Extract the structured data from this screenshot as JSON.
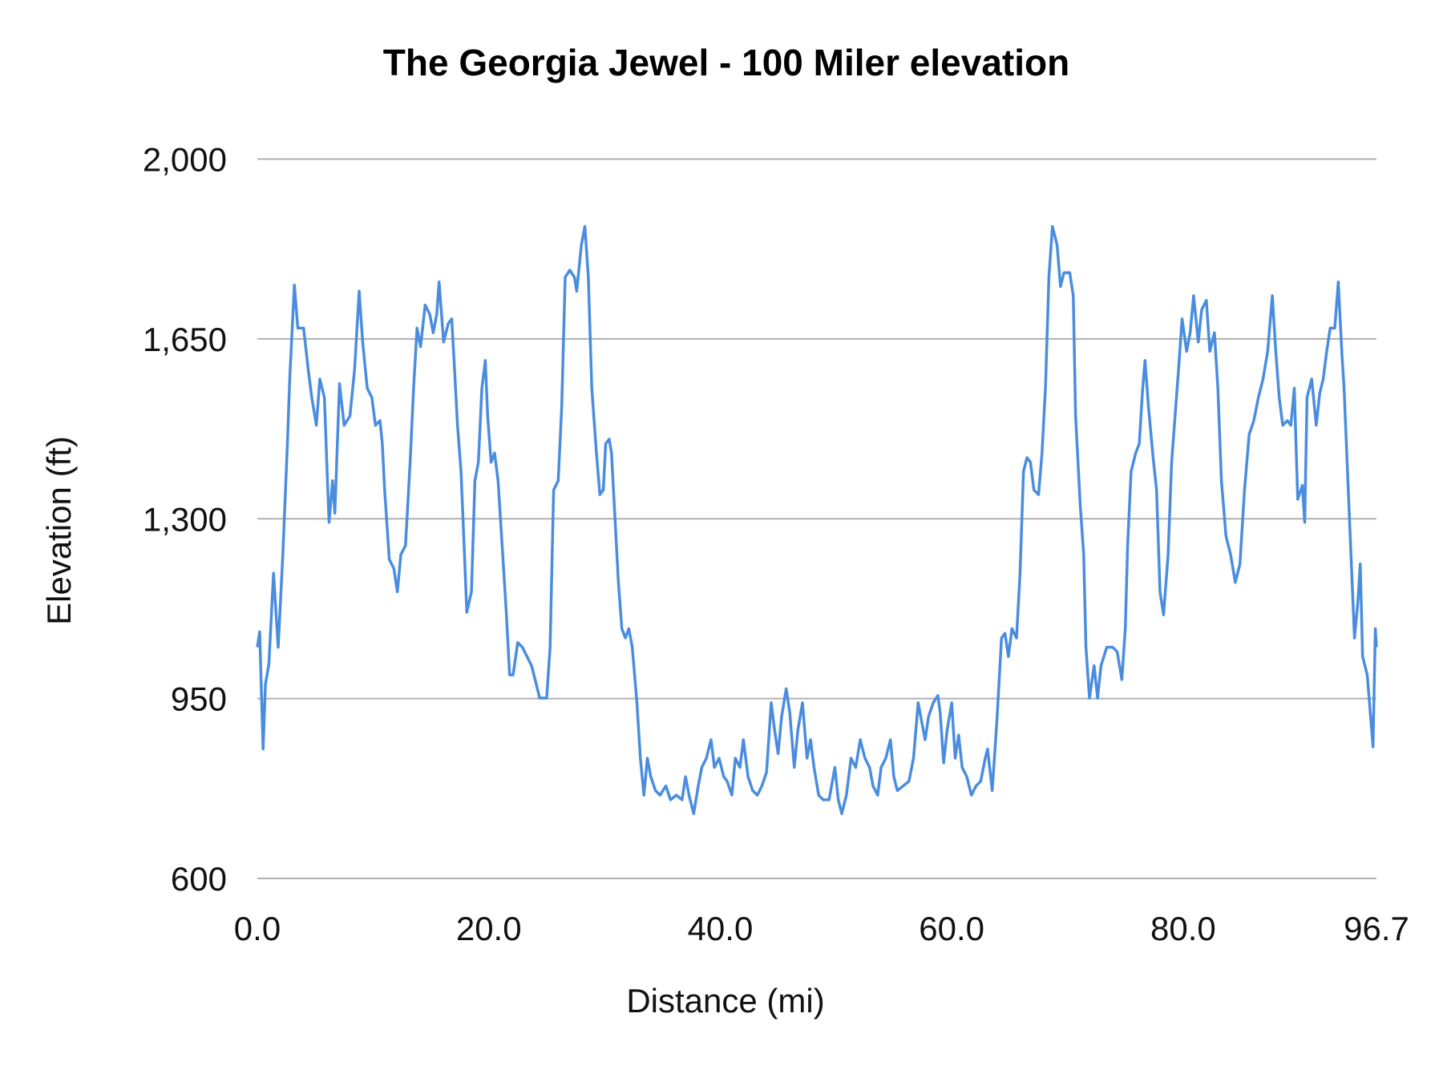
{
  "chart_data": {
    "type": "line",
    "title": "The Georgia Jewel - 100 Miler elevation",
    "xlabel": "Distance (mi)",
    "ylabel": "Elevation (ft)",
    "xlim": [
      0,
      96.7
    ],
    "ylim": [
      600,
      2000
    ],
    "x_ticks": [
      "0.0",
      "20.0",
      "40.0",
      "60.0",
      "80.0",
      "96.7"
    ],
    "x_tick_values": [
      0,
      20,
      40,
      60,
      80,
      96.7
    ],
    "y_ticks": [
      "600",
      "950",
      "1,300",
      "1,650",
      "2,000"
    ],
    "y_tick_values": [
      600,
      950,
      1300,
      1650,
      2000
    ],
    "grid": "horizontal",
    "legend": "none",
    "line_color": "#4a8ddf",
    "grid_color": "#b0b0b0",
    "series": [
      {
        "x": [
          0,
          0.2,
          0.5,
          0.7,
          1.0,
          1.4,
          1.8,
          2.2,
          2.6,
          2.8,
          3.2,
          3.5,
          4.0,
          4.4,
          4.7,
          5.1,
          5.4,
          5.8,
          6.0,
          6.2,
          6.5,
          6.7,
          7.1,
          7.5,
          8.0,
          8.4,
          8.8,
          9.1,
          9.5,
          9.9,
          10.2,
          10.6,
          10.8,
          11.0,
          11.4,
          11.8,
          12.1,
          12.4,
          12.8,
          13.2,
          13.5,
          13.8,
          14.1,
          14.5,
          14.9,
          15.2,
          15.5,
          15.7,
          16.1,
          16.5,
          16.8,
          17.0,
          17.3,
          17.6,
          17.9,
          18.1,
          18.5,
          18.8,
          19.1,
          19.4,
          19.7,
          19.9,
          20.2,
          20.5,
          20.8,
          21.2,
          21.5,
          21.8,
          22.1,
          22.5,
          22.9,
          23.3,
          23.7,
          24.1,
          24.4,
          25.0,
          25.3,
          25.6,
          26.0,
          26.3,
          26.6,
          27.0,
          27.4,
          27.6,
          28.0,
          28.3,
          28.6,
          28.9,
          29.3,
          29.6,
          29.9,
          30.1,
          30.4,
          30.6,
          30.9,
          31.2,
          31.5,
          31.8,
          32.1,
          32.4,
          32.8,
          33.1,
          33.4,
          33.7,
          34.0,
          34.4,
          34.8,
          35.3,
          35.7,
          36.2,
          36.7,
          37.0,
          37.3,
          37.7,
          38.1,
          38.4,
          38.8,
          39.2,
          39.5,
          39.9,
          40.3,
          40.6,
          41.0,
          41.3,
          41.7,
          42.0,
          42.4,
          42.8,
          43.2,
          43.6,
          44.0,
          44.4,
          44.7,
          45.0,
          45.3,
          45.7,
          46.0,
          46.4,
          46.7,
          47.1,
          47.5,
          47.8,
          48.1,
          48.5,
          48.9,
          49.4,
          49.9,
          50.2,
          50.5,
          50.9,
          51.3,
          51.7,
          52.1,
          52.5,
          52.9,
          53.2,
          53.6,
          53.9,
          54.3,
          54.7,
          55.0,
          55.3,
          55.8,
          56.3,
          56.7,
          57.1,
          57.4,
          57.7,
          58.0,
          58.4,
          58.8,
          59.0,
          59.3,
          59.6,
          60.0,
          60.3,
          60.6,
          60.9,
          61.3,
          61.7,
          62.1,
          62.5,
          62.9,
          63.1,
          63.5,
          63.9,
          64.3,
          64.6,
          64.9,
          65.2,
          65.6,
          65.9,
          66.2,
          66.5,
          66.8,
          67.1,
          67.5,
          67.8,
          68.1,
          68.4,
          68.7,
          69.1,
          69.4,
          69.7,
          70.2,
          70.5,
          70.7,
          71.1,
          71.4,
          71.6,
          71.9,
          72.3,
          72.6,
          72.9,
          73.4,
          73.9,
          74.3,
          74.7,
          75.0,
          75.2,
          75.5,
          75.9,
          76.2,
          76.5,
          76.7,
          77.0,
          77.4,
          77.7,
          78.0,
          78.3,
          78.7,
          79.0,
          79.3,
          79.6,
          79.9,
          80.3,
          80.6,
          80.9,
          81.3,
          81.6,
          82.0,
          82.3,
          82.7,
          83.0,
          83.3,
          83.7,
          84.1,
          84.5,
          84.9,
          85.3,
          85.7,
          86.1,
          86.5,
          86.9,
          87.3,
          87.7,
          88.0,
          88.3,
          88.6,
          89.0,
          89.3,
          89.6,
          89.9,
          90.3,
          90.5,
          90.7,
          91.1,
          91.5,
          91.8,
          92.1,
          92.4,
          92.7,
          93.1,
          93.4,
          93.7,
          93.9,
          94.2,
          94.5,
          94.8,
          95.1,
          95.3,
          95.5,
          95.9,
          96.1,
          96.4,
          96.6,
          96.7
        ],
        "y": [
          1050,
          1080,
          852,
          978,
          1017,
          1194,
          1050,
          1230,
          1446,
          1572,
          1755,
          1671,
          1671,
          1590,
          1536,
          1482,
          1572,
          1536,
          1410,
          1293,
          1374,
          1311,
          1563,
          1482,
          1500,
          1590,
          1743,
          1644,
          1554,
          1536,
          1482,
          1491,
          1446,
          1356,
          1221,
          1203,
          1158,
          1230,
          1248,
          1410,
          1554,
          1671,
          1635,
          1716,
          1698,
          1662,
          1698,
          1761,
          1644,
          1680,
          1689,
          1608,
          1482,
          1392,
          1230,
          1118,
          1158,
          1374,
          1410,
          1554,
          1608,
          1500,
          1410,
          1428,
          1374,
          1230,
          1122,
          996,
          996,
          1059,
          1050,
          1032,
          1014,
          978,
          951,
          951,
          1050,
          1356,
          1374,
          1518,
          1770,
          1784,
          1770,
          1743,
          1833,
          1869,
          1770,
          1554,
          1428,
          1347,
          1356,
          1446,
          1455,
          1428,
          1302,
          1176,
          1086,
          1068,
          1086,
          1050,
          942,
          834,
          762,
          834,
          798,
          771,
          762,
          780,
          753,
          762,
          753,
          798,
          762,
          726,
          780,
          816,
          834,
          870,
          816,
          834,
          798,
          789,
          762,
          834,
          816,
          870,
          798,
          771,
          762,
          780,
          807,
          942,
          888,
          843,
          915,
          969,
          924,
          816,
          888,
          942,
          834,
          870,
          816,
          762,
          753,
          753,
          816,
          753,
          726,
          762,
          834,
          816,
          870,
          834,
          816,
          780,
          762,
          816,
          834,
          870,
          798,
          771,
          780,
          789,
          834,
          942,
          906,
          870,
          915,
          942,
          956,
          924,
          825,
          888,
          942,
          834,
          879,
          816,
          798,
          762,
          780,
          789,
          834,
          852,
          771,
          906,
          1068,
          1077,
          1032,
          1086,
          1068,
          1194,
          1392,
          1419,
          1410,
          1356,
          1347,
          1428,
          1554,
          1770,
          1869,
          1833,
          1752,
          1779,
          1779,
          1734,
          1500,
          1329,
          1230,
          1050,
          951,
          1014,
          951,
          1014,
          1050,
          1050,
          1041,
          987,
          1086,
          1248,
          1392,
          1428,
          1446,
          1554,
          1608,
          1518,
          1419,
          1356,
          1158,
          1113,
          1230,
          1410,
          1500,
          1590,
          1689,
          1626,
          1662,
          1734,
          1644,
          1707,
          1725,
          1626,
          1662,
          1554,
          1374,
          1266,
          1230,
          1176,
          1212,
          1356,
          1464,
          1491,
          1536,
          1572,
          1626,
          1734,
          1626,
          1536,
          1482,
          1491,
          1482,
          1554,
          1338,
          1365,
          1293,
          1536,
          1572,
          1482,
          1545,
          1572,
          1626,
          1671,
          1671,
          1761,
          1626,
          1554,
          1392,
          1230,
          1068,
          1140,
          1212,
          1032,
          996,
          942,
          856,
          1086,
          1050
        ]
      }
    ]
  }
}
